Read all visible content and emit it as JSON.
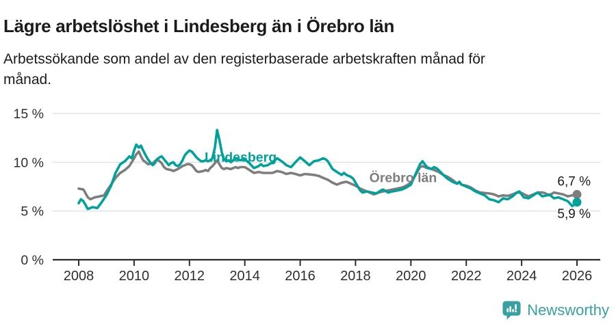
{
  "header": {
    "title": "Lägre arbetslöshet i Lindesberg än i Örebro län",
    "subtitle": "Arbetssökande som andel av den registerbaserade arbetskraften månad för månad.",
    "subtitle_lines": [
      "Arbetssökande som andel av den registerbaserade arbetskraften månad för",
      "månad."
    ]
  },
  "chart_data": {
    "type": "line",
    "unit": "%",
    "grid": true,
    "x_axis": {
      "ticks": [
        2008,
        2010,
        2012,
        2014,
        2016,
        2018,
        2020,
        2022,
        2024,
        2026
      ],
      "range": [
        2007.05,
        2026.9
      ]
    },
    "y_axis": {
      "ticks": [
        {
          "v": 0,
          "label": "0 %"
        },
        {
          "v": 5,
          "label": "5 %"
        },
        {
          "v": 10,
          "label": "10 %"
        },
        {
          "v": 15,
          "label": "15 %"
        }
      ],
      "range": [
        0,
        15.8
      ]
    },
    "colors": {
      "lindesberg": "#00a19a",
      "orebro": "#7d7d7d",
      "grid": "#dcdcdc",
      "axis": "#2b2b2b"
    },
    "series": [
      {
        "name": "Örebro län",
        "color": "#7d7d7d",
        "label": {
          "text": "Örebro län",
          "x": 2018.5,
          "y": 7.95
        },
        "end_value": 6.7,
        "end_label": {
          "text": "6,7 %",
          "placement": "above"
        },
        "points": [
          [
            2008.0,
            7.3
          ],
          [
            2008.17,
            7.2
          ],
          [
            2008.33,
            6.4
          ],
          [
            2008.42,
            6.2
          ],
          [
            2008.58,
            6.4
          ],
          [
            2008.75,
            6.5
          ],
          [
            2008.92,
            6.6
          ],
          [
            2009.0,
            7.0
          ],
          [
            2009.17,
            7.7
          ],
          [
            2009.33,
            8.4
          ],
          [
            2009.5,
            8.9
          ],
          [
            2009.67,
            9.2
          ],
          [
            2009.83,
            9.6
          ],
          [
            2010.0,
            10.4
          ],
          [
            2010.08,
            10.8
          ],
          [
            2010.17,
            11.1
          ],
          [
            2010.25,
            10.6
          ],
          [
            2010.33,
            10.2
          ],
          [
            2010.42,
            10.0
          ],
          [
            2010.5,
            9.8
          ],
          [
            2010.67,
            9.9
          ],
          [
            2010.83,
            10.3
          ],
          [
            2010.92,
            10.1
          ],
          [
            2011.0,
            9.9
          ],
          [
            2011.08,
            9.5
          ],
          [
            2011.17,
            9.3
          ],
          [
            2011.33,
            9.2
          ],
          [
            2011.42,
            9.1
          ],
          [
            2011.58,
            9.3
          ],
          [
            2011.75,
            9.6
          ],
          [
            2011.92,
            9.8
          ],
          [
            2012.0,
            9.8
          ],
          [
            2012.08,
            9.7
          ],
          [
            2012.17,
            9.4
          ],
          [
            2012.25,
            9.1
          ],
          [
            2012.33,
            9.0
          ],
          [
            2012.5,
            9.1
          ],
          [
            2012.58,
            9.2
          ],
          [
            2012.67,
            9.1
          ],
          [
            2012.75,
            9.4
          ],
          [
            2012.83,
            9.6
          ],
          [
            2012.92,
            9.9
          ],
          [
            2013.0,
            10.2
          ],
          [
            2013.08,
            9.8
          ],
          [
            2013.17,
            9.4
          ],
          [
            2013.25,
            9.3
          ],
          [
            2013.33,
            9.4
          ],
          [
            2013.5,
            9.3
          ],
          [
            2013.58,
            9.4
          ],
          [
            2013.67,
            9.5
          ],
          [
            2013.75,
            9.4
          ],
          [
            2013.83,
            9.5
          ],
          [
            2014.0,
            9.5
          ],
          [
            2014.17,
            9.2
          ],
          [
            2014.33,
            8.9
          ],
          [
            2014.5,
            9.0
          ],
          [
            2014.67,
            8.9
          ],
          [
            2014.83,
            8.9
          ],
          [
            2015.0,
            8.9
          ],
          [
            2015.17,
            9.1
          ],
          [
            2015.33,
            9.0
          ],
          [
            2015.5,
            8.8
          ],
          [
            2015.67,
            8.9
          ],
          [
            2015.83,
            8.8
          ],
          [
            2016.0,
            8.65
          ],
          [
            2016.17,
            8.8
          ],
          [
            2016.33,
            8.75
          ],
          [
            2016.5,
            8.7
          ],
          [
            2016.67,
            8.6
          ],
          [
            2016.83,
            8.4
          ],
          [
            2017.0,
            8.2
          ],
          [
            2017.17,
            7.9
          ],
          [
            2017.33,
            7.7
          ],
          [
            2017.5,
            7.9
          ],
          [
            2017.67,
            8.0
          ],
          [
            2017.83,
            7.8
          ],
          [
            2018.0,
            7.6
          ],
          [
            2018.17,
            7.3
          ],
          [
            2018.33,
            7.1
          ],
          [
            2018.5,
            6.9
          ],
          [
            2018.67,
            6.7
          ],
          [
            2018.83,
            6.9
          ],
          [
            2019.0,
            7.0
          ],
          [
            2019.17,
            7.1
          ],
          [
            2019.33,
            7.2
          ],
          [
            2019.5,
            7.3
          ],
          [
            2019.67,
            7.4
          ],
          [
            2019.83,
            7.6
          ],
          [
            2020.0,
            7.9
          ],
          [
            2020.17,
            8.7
          ],
          [
            2020.33,
            9.5
          ],
          [
            2020.42,
            9.6
          ],
          [
            2020.58,
            9.4
          ],
          [
            2020.75,
            9.3
          ],
          [
            2021.0,
            9.0
          ],
          [
            2021.17,
            8.7
          ],
          [
            2021.33,
            8.5
          ],
          [
            2021.5,
            8.2
          ],
          [
            2021.67,
            7.8
          ],
          [
            2021.75,
            7.9
          ],
          [
            2021.83,
            7.7
          ],
          [
            2022.0,
            7.6
          ],
          [
            2022.17,
            7.4
          ],
          [
            2022.33,
            7.1
          ],
          [
            2022.5,
            6.9
          ],
          [
            2022.67,
            6.85
          ],
          [
            2022.83,
            6.8
          ],
          [
            2023.0,
            6.7
          ],
          [
            2023.17,
            6.5
          ],
          [
            2023.33,
            6.6
          ],
          [
            2023.5,
            6.55
          ],
          [
            2023.67,
            6.7
          ],
          [
            2023.83,
            6.9
          ],
          [
            2024.0,
            6.85
          ],
          [
            2024.17,
            6.6
          ],
          [
            2024.25,
            6.5
          ],
          [
            2024.42,
            6.7
          ],
          [
            2024.58,
            6.9
          ],
          [
            2024.75,
            6.9
          ],
          [
            2024.83,
            6.85
          ],
          [
            2025.0,
            6.6
          ],
          [
            2025.17,
            6.9
          ],
          [
            2025.33,
            6.8
          ],
          [
            2025.5,
            6.7
          ],
          [
            2025.67,
            6.5
          ],
          [
            2025.83,
            6.6
          ],
          [
            2026.0,
            6.7
          ]
        ]
      },
      {
        "name": "Lindesberg",
        "color": "#00a19a",
        "label": {
          "text": "Lindesberg",
          "x": 2012.55,
          "y": 10.05
        },
        "end_value": 5.9,
        "end_label": {
          "text": "5,9 %",
          "placement": "below"
        },
        "points": [
          [
            2008.0,
            5.8
          ],
          [
            2008.08,
            6.2
          ],
          [
            2008.17,
            6.0
          ],
          [
            2008.33,
            5.2
          ],
          [
            2008.5,
            5.4
          ],
          [
            2008.67,
            5.3
          ],
          [
            2008.83,
            5.9
          ],
          [
            2009.0,
            6.6
          ],
          [
            2009.17,
            7.6
          ],
          [
            2009.33,
            8.9
          ],
          [
            2009.5,
            9.8
          ],
          [
            2009.67,
            10.1
          ],
          [
            2009.83,
            10.6
          ],
          [
            2009.92,
            10.4
          ],
          [
            2010.0,
            11.2
          ],
          [
            2010.08,
            11.8
          ],
          [
            2010.17,
            11.5
          ],
          [
            2010.25,
            11.7
          ],
          [
            2010.33,
            11.2
          ],
          [
            2010.42,
            10.7
          ],
          [
            2010.5,
            10.3
          ],
          [
            2010.58,
            10.0
          ],
          [
            2010.67,
            9.7
          ],
          [
            2010.75,
            9.9
          ],
          [
            2010.83,
            10.3
          ],
          [
            2010.92,
            10.5
          ],
          [
            2011.0,
            10.6
          ],
          [
            2011.08,
            10.3
          ],
          [
            2011.17,
            10.0
          ],
          [
            2011.25,
            9.7
          ],
          [
            2011.33,
            9.9
          ],
          [
            2011.42,
            10.0
          ],
          [
            2011.5,
            9.7
          ],
          [
            2011.58,
            9.6
          ],
          [
            2011.67,
            9.8
          ],
          [
            2011.75,
            10.2
          ],
          [
            2011.83,
            10.7
          ],
          [
            2011.92,
            11.0
          ],
          [
            2012.0,
            11.2
          ],
          [
            2012.08,
            11.1
          ],
          [
            2012.17,
            10.8
          ],
          [
            2012.25,
            10.5
          ],
          [
            2012.33,
            10.3
          ],
          [
            2012.42,
            10.1
          ],
          [
            2012.5,
            10.1
          ],
          [
            2012.58,
            10.2
          ],
          [
            2012.67,
            10.1
          ],
          [
            2012.75,
            10.2
          ],
          [
            2012.83,
            10.4
          ],
          [
            2012.92,
            11.5
          ],
          [
            2013.0,
            13.3
          ],
          [
            2013.08,
            12.3
          ],
          [
            2013.17,
            11.0
          ],
          [
            2013.25,
            10.3
          ],
          [
            2013.33,
            10.1
          ],
          [
            2013.42,
            10.2
          ],
          [
            2013.5,
            10.0
          ],
          [
            2013.58,
            10.2
          ],
          [
            2013.67,
            10.4
          ],
          [
            2013.75,
            10.3
          ],
          [
            2013.83,
            10.2
          ],
          [
            2013.92,
            10.3
          ],
          [
            2014.0,
            10.3
          ],
          [
            2014.17,
            9.9
          ],
          [
            2014.33,
            9.4
          ],
          [
            2014.5,
            9.6
          ],
          [
            2014.58,
            9.8
          ],
          [
            2014.67,
            9.6
          ],
          [
            2014.83,
            9.7
          ],
          [
            2015.0,
            10.0
          ],
          [
            2015.17,
            10.4
          ],
          [
            2015.33,
            10.1
          ],
          [
            2015.5,
            9.7
          ],
          [
            2015.67,
            9.5
          ],
          [
            2015.83,
            10.0
          ],
          [
            2016.0,
            10.5
          ],
          [
            2016.17,
            10.1
          ],
          [
            2016.33,
            9.7
          ],
          [
            2016.5,
            10.1
          ],
          [
            2016.67,
            10.2
          ],
          [
            2016.83,
            10.4
          ],
          [
            2016.92,
            10.3
          ],
          [
            2017.0,
            10.1
          ],
          [
            2017.17,
            9.3
          ],
          [
            2017.33,
            9.0
          ],
          [
            2017.5,
            8.7
          ],
          [
            2017.58,
            8.9
          ],
          [
            2017.67,
            8.7
          ],
          [
            2017.83,
            8.5
          ],
          [
            2017.92,
            8.3
          ],
          [
            2018.0,
            7.9
          ],
          [
            2018.17,
            7.1
          ],
          [
            2018.25,
            6.9
          ],
          [
            2018.42,
            7.0
          ],
          [
            2018.58,
            6.9
          ],
          [
            2018.75,
            6.8
          ],
          [
            2018.92,
            7.1
          ],
          [
            2019.0,
            7.2
          ],
          [
            2019.17,
            6.9
          ],
          [
            2019.33,
            7.0
          ],
          [
            2019.5,
            7.1
          ],
          [
            2019.67,
            7.2
          ],
          [
            2019.83,
            7.4
          ],
          [
            2020.0,
            7.7
          ],
          [
            2020.17,
            8.8
          ],
          [
            2020.33,
            9.8
          ],
          [
            2020.42,
            10.1
          ],
          [
            2020.5,
            9.8
          ],
          [
            2020.58,
            9.5
          ],
          [
            2020.75,
            9.3
          ],
          [
            2020.83,
            9.5
          ],
          [
            2020.92,
            9.4
          ],
          [
            2021.0,
            9.2
          ],
          [
            2021.17,
            8.7
          ],
          [
            2021.33,
            8.3
          ],
          [
            2021.5,
            8.0
          ],
          [
            2021.67,
            7.8
          ],
          [
            2021.75,
            8.0
          ],
          [
            2021.83,
            7.7
          ],
          [
            2022.0,
            7.5
          ],
          [
            2022.17,
            7.3
          ],
          [
            2022.33,
            7.0
          ],
          [
            2022.5,
            6.8
          ],
          [
            2022.67,
            6.6
          ],
          [
            2022.83,
            6.2
          ],
          [
            2023.0,
            6.1
          ],
          [
            2023.17,
            5.9
          ],
          [
            2023.33,
            6.3
          ],
          [
            2023.5,
            6.2
          ],
          [
            2023.67,
            6.5
          ],
          [
            2023.83,
            6.9
          ],
          [
            2023.92,
            7.0
          ],
          [
            2024.08,
            6.4
          ],
          [
            2024.25,
            6.3
          ],
          [
            2024.42,
            6.6
          ],
          [
            2024.58,
            6.9
          ],
          [
            2024.75,
            6.5
          ],
          [
            2024.92,
            6.6
          ],
          [
            2025.0,
            6.7
          ],
          [
            2025.17,
            6.3
          ],
          [
            2025.33,
            6.4
          ],
          [
            2025.5,
            6.2
          ],
          [
            2025.67,
            6.0
          ],
          [
            2025.83,
            5.5
          ],
          [
            2026.0,
            5.9
          ]
        ]
      }
    ]
  },
  "footer": {
    "brand": "Newsworthy",
    "brand_color": "#38a0a0",
    "logo_icon": "bar-chart-exclamation-bubble-icon"
  }
}
